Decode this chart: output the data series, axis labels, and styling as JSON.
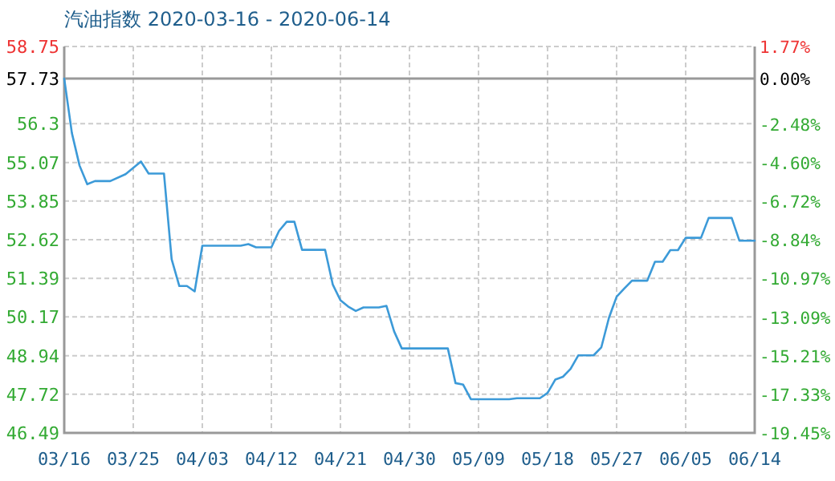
{
  "chart_data": {
    "type": "line",
    "title": "汽油指数 2020-03-16 - 2020-06-14",
    "x": [
      "2020-03-16",
      "2020-03-17",
      "2020-03-18",
      "2020-03-19",
      "2020-03-20",
      "2020-03-22",
      "2020-03-24",
      "2020-03-26",
      "2020-03-27",
      "2020-03-29",
      "2020-03-30",
      "2020-03-31",
      "2020-04-01",
      "2020-04-02",
      "2020-04-03",
      "2020-04-08",
      "2020-04-09",
      "2020-04-10",
      "2020-04-12",
      "2020-04-13",
      "2020-04-14",
      "2020-04-15",
      "2020-04-16",
      "2020-04-19",
      "2020-04-20",
      "2020-04-21",
      "2020-04-22",
      "2020-04-23",
      "2020-04-24",
      "2020-04-26",
      "2020-04-27",
      "2020-04-28",
      "2020-04-29",
      "2020-05-05",
      "2020-05-06",
      "2020-05-07",
      "2020-05-08",
      "2020-05-13",
      "2020-05-14",
      "2020-05-17",
      "2020-05-18",
      "2020-05-19",
      "2020-05-20",
      "2020-05-21",
      "2020-05-22",
      "2020-05-24",
      "2020-05-25",
      "2020-05-26",
      "2020-05-27",
      "2020-05-28",
      "2020-05-29",
      "2020-05-31",
      "2020-06-01",
      "2020-06-02",
      "2020-06-03",
      "2020-06-04",
      "2020-06-05",
      "2020-06-07",
      "2020-06-08",
      "2020-06-11",
      "2020-06-12",
      "2020-06-14"
    ],
    "series": [
      {
        "color": "#3c9ad8",
        "values": [
          57.73,
          56.0,
          54.97,
          54.38,
          54.48,
          54.48,
          54.7,
          55.1,
          54.72,
          54.72,
          52.0,
          51.15,
          51.15,
          50.98,
          52.43,
          52.43,
          52.48,
          52.38,
          52.38,
          52.9,
          53.19,
          53.19,
          52.3,
          52.3,
          51.2,
          50.7,
          50.5,
          50.36,
          50.47,
          50.47,
          50.52,
          49.71,
          49.17,
          49.17,
          48.07,
          48.02,
          47.56,
          47.56,
          47.59,
          47.59,
          47.76,
          48.18,
          48.27,
          48.52,
          48.95,
          48.95,
          49.2,
          50.14,
          50.81,
          51.07,
          51.32,
          51.32,
          51.92,
          51.92,
          52.29,
          52.29,
          52.68,
          52.68,
          53.31,
          53.31,
          52.59,
          52.59
        ]
      }
    ],
    "xlim": [
      "2020-03-16",
      "2020-06-14"
    ],
    "xticks": [
      {
        "value": "2020-03-16",
        "label": "03/16"
      },
      {
        "value": "2020-03-25",
        "label": "03/25"
      },
      {
        "value": "2020-04-03",
        "label": "04/03"
      },
      {
        "value": "2020-04-12",
        "label": "04/12"
      },
      {
        "value": "2020-04-21",
        "label": "04/21"
      },
      {
        "value": "2020-04-30",
        "label": "04/30"
      },
      {
        "value": "2020-05-09",
        "label": "05/09"
      },
      {
        "value": "2020-05-18",
        "label": "05/18"
      },
      {
        "value": "2020-05-27",
        "label": "05/27"
      },
      {
        "value": "2020-06-05",
        "label": "06/05"
      },
      {
        "value": "2020-06-14",
        "label": "06/14"
      }
    ],
    "ylim": [
      46.49,
      58.75
    ],
    "yticks": [
      46.49,
      47.72,
      48.94,
      50.17,
      51.39,
      52.62,
      53.85,
      55.07,
      56.3,
      57.73,
      58.75
    ],
    "y2lim": [
      -19.45,
      1.77
    ],
    "y2ticks": [
      {
        "value": -19.45,
        "label": "-19.45%"
      },
      {
        "value": -17.33,
        "label": "-17.33%"
      },
      {
        "value": -15.21,
        "label": "-15.21%"
      },
      {
        "value": -13.09,
        "label": "-13.09%"
      },
      {
        "value": -10.97,
        "label": "-10.97%"
      },
      {
        "value": -8.84,
        "label": "-8.84%"
      },
      {
        "value": -6.72,
        "label": "-6.72%"
      },
      {
        "value": -4.6,
        "label": "-4.60%"
      },
      {
        "value": -2.48,
        "label": "-2.48%"
      },
      {
        "value": 0,
        "label": "0.00%"
      },
      {
        "value": 1.77,
        "label": "1.77%"
      }
    ],
    "ref_lines": [
      {
        "axis": "y",
        "value": 57.73,
        "color": "#999999"
      }
    ],
    "grid": true,
    "line_style": "solid"
  }
}
